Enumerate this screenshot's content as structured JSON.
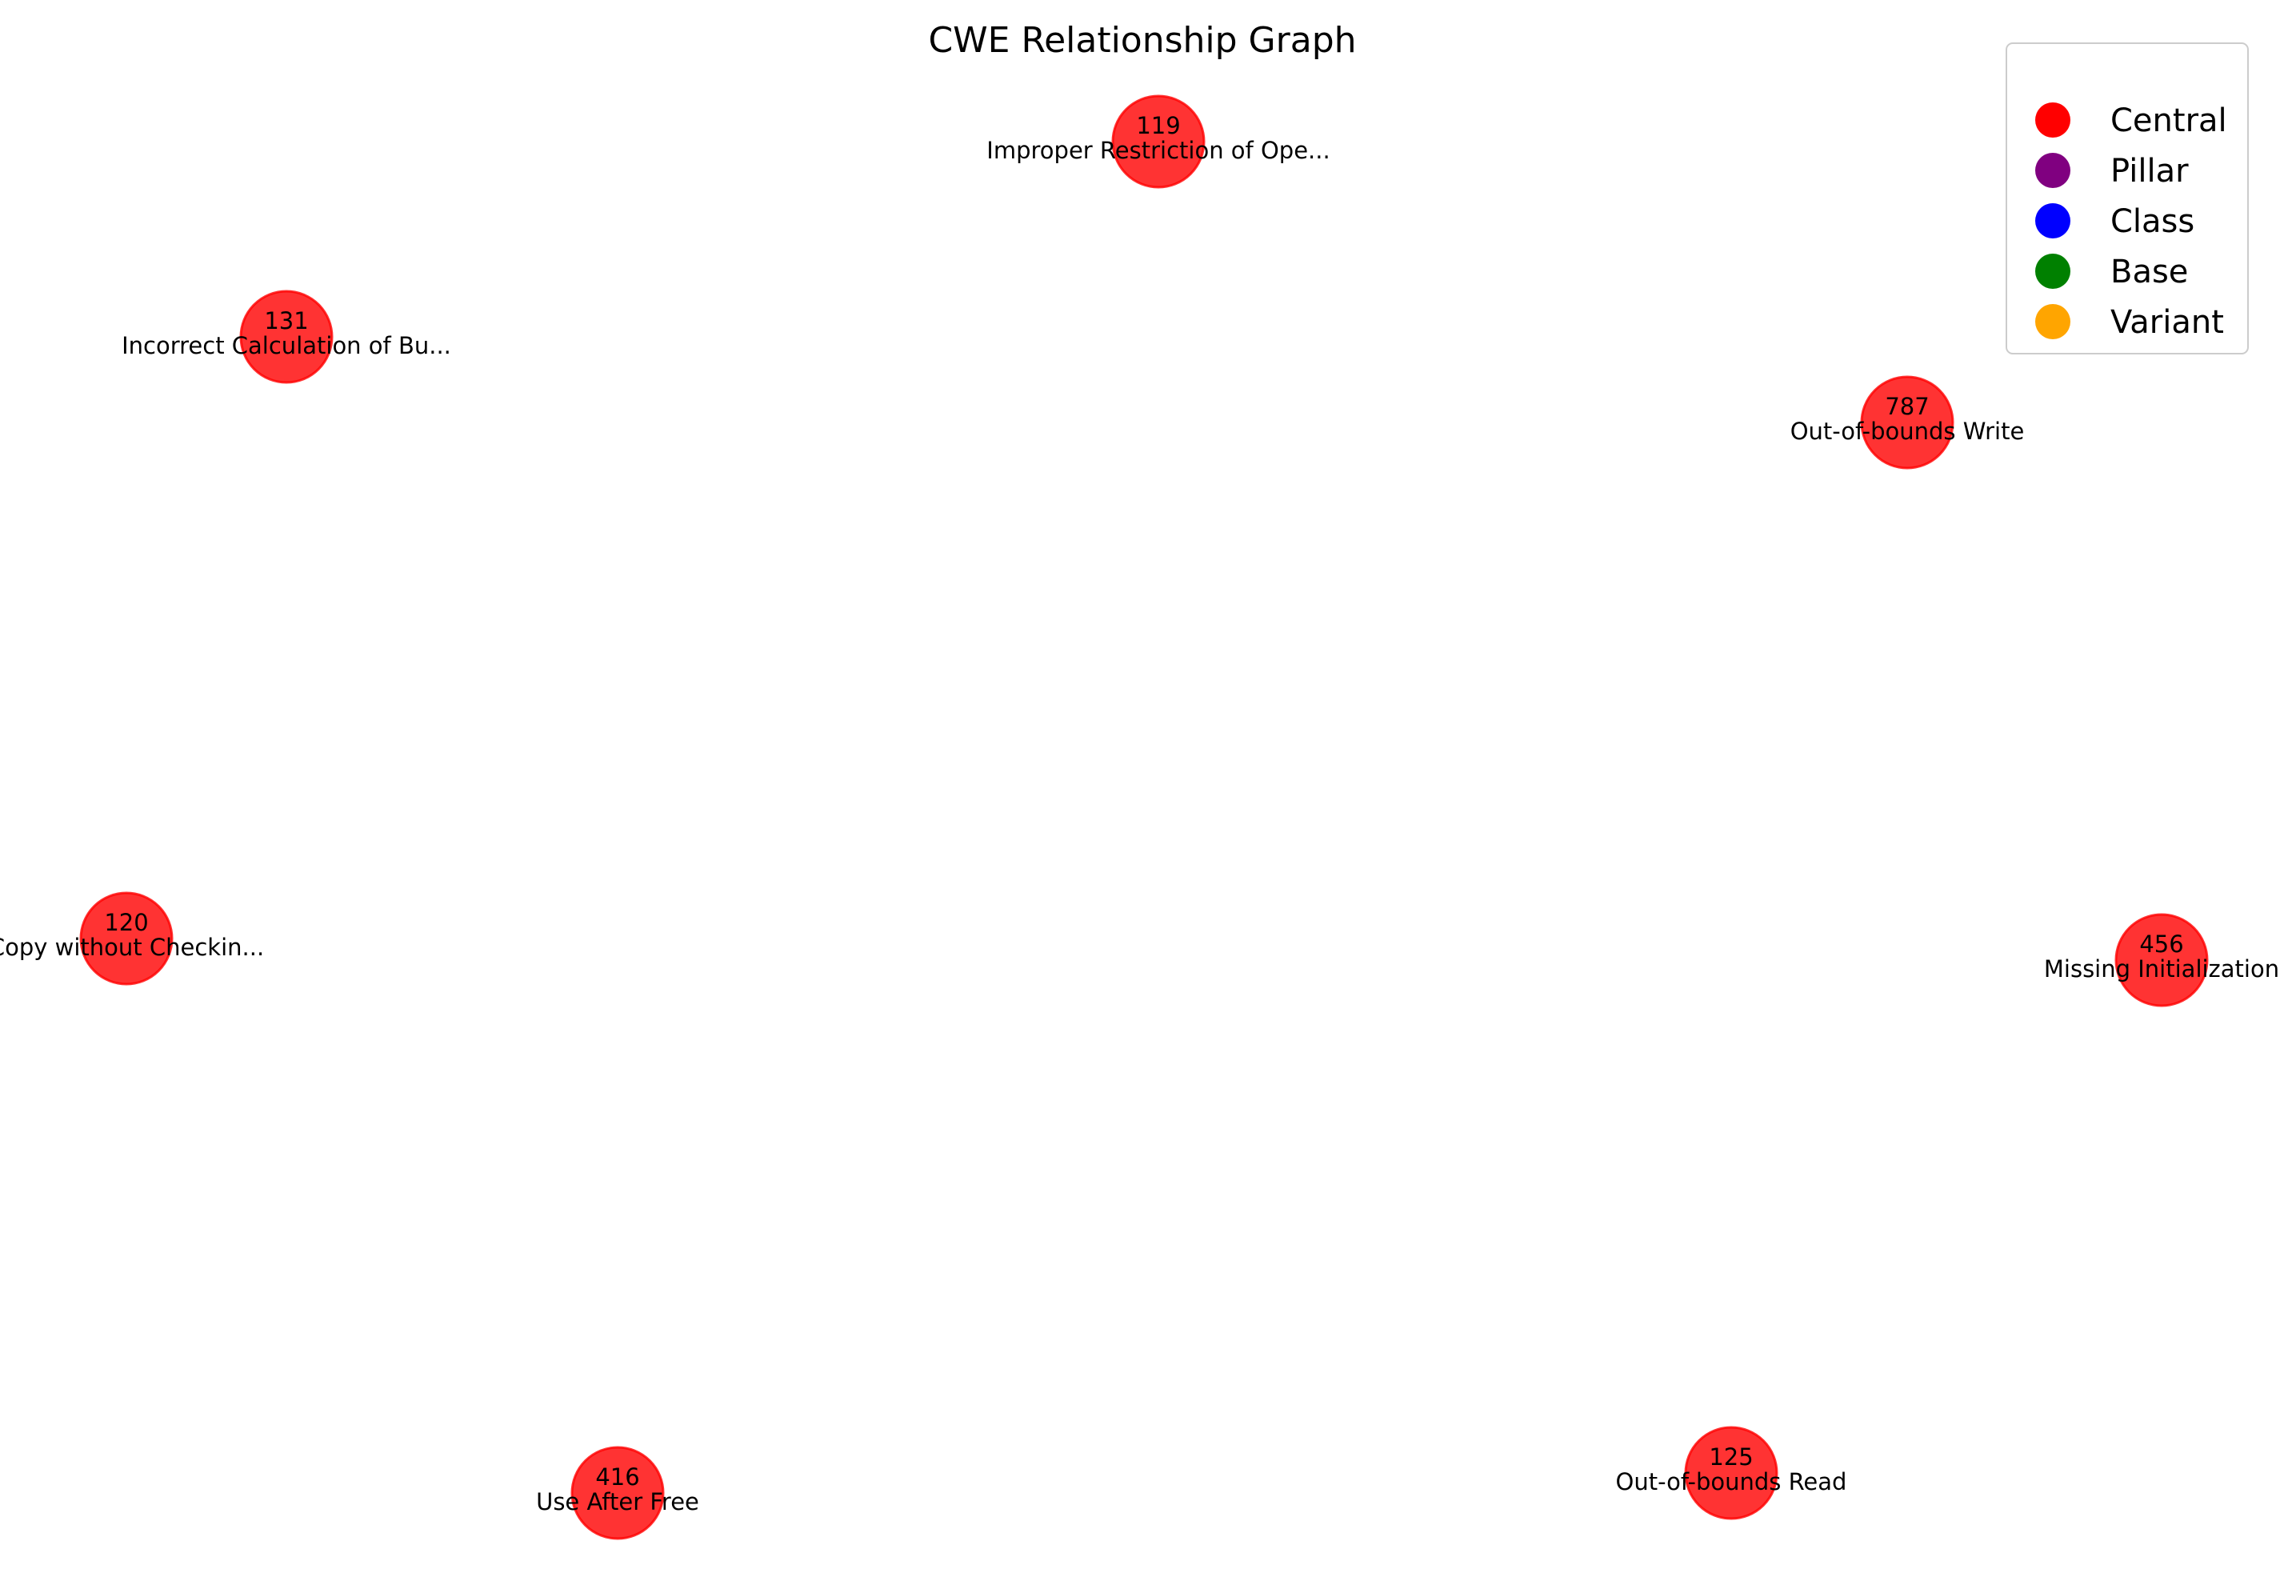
{
  "title": "CWE Relationship Graph",
  "nodes": [
    {
      "id": "119",
      "label": "Improper Restriction of Ope...",
      "category": "Central"
    },
    {
      "id": "131",
      "label": "Incorrect Calculation of Bu...",
      "category": "Central"
    },
    {
      "id": "787",
      "label": "Out-of-bounds Write",
      "category": "Central"
    },
    {
      "id": "120",
      "label": "Copy without Checkin...",
      "category": "Central"
    },
    {
      "id": "456",
      "label": "Missing Initialization",
      "category": "Central"
    },
    {
      "id": "416",
      "label": "Use After Free",
      "category": "Central"
    },
    {
      "id": "125",
      "label": "Out-of-bounds Read",
      "category": "Central"
    }
  ],
  "legend": [
    {
      "label": "Central",
      "color": "#ff0000"
    },
    {
      "label": "Pillar",
      "color": "#800080"
    },
    {
      "label": "Class",
      "color": "#0000ff"
    },
    {
      "label": "Base",
      "color": "#008000"
    },
    {
      "label": "Variant",
      "color": "#ffa500"
    }
  ],
  "colors": {
    "Central": "#ff0000",
    "Pillar": "#800080",
    "Class": "#0000ff",
    "Base": "#008000",
    "Variant": "#ffa500"
  }
}
